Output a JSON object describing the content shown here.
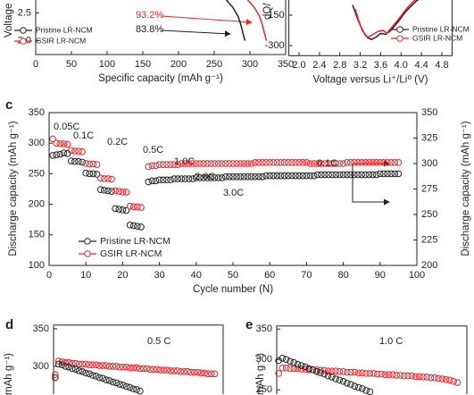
{
  "chart_data": [
    {
      "type": "line",
      "xlabel": "Specific capacity (mAh g⁻¹)",
      "ylabel": "Voltage",
      "xlim": [
        0,
        350
      ],
      "xticks": [
        0,
        50,
        100,
        150,
        200,
        250,
        300,
        350
      ],
      "ylim": [
        1.75,
        2.75
      ],
      "yticks": [
        {
          "value": 2.0,
          "label": "2.0"
        },
        2.5
      ],
      "series": [
        {
          "name": "Pristine LR-NCM",
          "color": "#222222",
          "x": [
            266,
            276,
            283,
            287,
            290,
            292,
            293
          ],
          "values": [
            2.75,
            2.6,
            2.45,
            2.3,
            2.15,
            2.05,
            2.0
          ]
        },
        {
          "name": "GSIR LR-NCM",
          "color": "#e8252a",
          "x": [
            296,
            306,
            313,
            317,
            320,
            322,
            323
          ],
          "values": [
            2.75,
            2.6,
            2.45,
            2.3,
            2.15,
            2.05,
            2.0
          ]
        }
      ],
      "annotations": [
        {
          "text": "93.2%",
          "color": "#e8252a"
        },
        {
          "text": "83.8%",
          "color": "#222222"
        }
      ]
    },
    {
      "type": "line",
      "xlabel": "Voltage versus Li⁺/Li⁰ (V)",
      "ylabel": "dQ/",
      "xlim": [
        1.8,
        5.0
      ],
      "xticks": [
        {
          "value": 2.0,
          "label": "2.0"
        },
        2.4,
        2.8,
        3.2,
        3.6,
        {
          "value": 4.0,
          "label": "4.0"
        },
        4.4,
        4.8
      ],
      "ylim": [
        -350,
        -50
      ],
      "yticks": [
        -150,
        -300
      ],
      "series": [
        {
          "name": "Pristine LR-NCM",
          "color": "#222222",
          "x": [
            3.05,
            3.15,
            3.25,
            3.35,
            3.42,
            3.5,
            3.6,
            3.7,
            3.8,
            3.95,
            4.1,
            4.3,
            4.5
          ],
          "values": [
            -100,
            -170,
            -230,
            -262,
            -270,
            -260,
            -240,
            -245,
            -225,
            -180,
            -130,
            -80,
            -50
          ]
        },
        {
          "name": "GSIR LR-NCM",
          "color": "#e8252a",
          "x": [
            3.1,
            3.2,
            3.3,
            3.36,
            3.45,
            3.55,
            3.65,
            3.72,
            3.8,
            3.95,
            4.1,
            4.25,
            4.4
          ],
          "values": [
            -120,
            -200,
            -250,
            -258,
            -245,
            -230,
            -225,
            -240,
            -215,
            -170,
            -120,
            -80,
            -50
          ]
        }
      ]
    },
    {
      "type": "scatter",
      "panel": "c",
      "xlabel": "Cycle number (N)",
      "ylabel": "Discharge capacity (mAh g⁻¹)",
      "y2label": "Discharge capacity (mAh g⁻¹)",
      "xlim": [
        0,
        100
      ],
      "xticks": [
        0,
        10,
        20,
        30,
        40,
        50,
        60,
        70,
        80,
        90,
        100
      ],
      "ylim": [
        100,
        350
      ],
      "yticks": [
        100,
        150,
        200,
        250,
        300,
        350
      ],
      "y2lim": [
        200,
        350
      ],
      "y2ticks": [
        200,
        225,
        250,
        275,
        300,
        325,
        350
      ],
      "series": [
        {
          "name": "Pristine LR-NCM",
          "color": "#222222",
          "x": [
            1,
            2,
            3,
            4,
            5,
            6,
            7,
            8,
            9,
            10,
            11,
            12,
            13,
            14,
            15,
            16,
            17,
            18,
            19,
            20,
            21,
            22,
            23,
            24,
            25
          ],
          "values": [
            280,
            281,
            282,
            284,
            283,
            271,
            270,
            270,
            269,
            251,
            250,
            250,
            249,
            224,
            223,
            222,
            221,
            193,
            192,
            191,
            190,
            166,
            165,
            164,
            163
          ]
        },
        {
          "name": "GSIR LR-NCM",
          "color": "#e8252a",
          "x": [
            1,
            2,
            3,
            4,
            5,
            6,
            7,
            8,
            9,
            10,
            11,
            12,
            13,
            14,
            15,
            16,
            17,
            18,
            19,
            20,
            21,
            22,
            23,
            24,
            25
          ],
          "values": [
            307,
            300,
            299,
            299,
            298,
            288,
            287,
            287,
            286,
            267,
            266,
            266,
            265,
            243,
            242,
            242,
            241,
            222,
            221,
            220,
            220,
            197,
            196,
            196,
            195
          ]
        },
        {
          "color": "#222222",
          "axis": "y2",
          "x": [
            27,
            28,
            29,
            30,
            31,
            32,
            33,
            34,
            35,
            36,
            37,
            38,
            39,
            40,
            41,
            42,
            43,
            44,
            45,
            46,
            47,
            48,
            49,
            50,
            51,
            52,
            53,
            54,
            55,
            56,
            57,
            58,
            59,
            60,
            61,
            62,
            63,
            64,
            65,
            66,
            67,
            68,
            69,
            70,
            71,
            72,
            73,
            74,
            75,
            76,
            77,
            78,
            79,
            80,
            81,
            82,
            83,
            84,
            85,
            86,
            87,
            88,
            89,
            90,
            91,
            92,
            93,
            94,
            95
          ],
          "values": [
            282,
            283,
            283,
            284,
            284,
            284,
            284,
            285,
            285,
            285,
            285,
            285,
            285,
            286,
            286,
            286,
            286,
            286,
            286,
            286,
            286,
            287,
            287,
            287,
            287,
            287,
            287,
            287,
            287,
            287,
            287,
            287,
            288,
            288,
            288,
            288,
            288,
            288,
            288,
            288,
            288,
            288,
            288,
            288,
            288,
            288,
            289,
            289,
            289,
            289,
            289,
            289,
            289,
            289,
            289,
            289,
            289,
            289,
            289,
            289,
            289,
            289,
            289,
            290,
            290,
            290,
            290,
            290,
            290
          ]
        },
        {
          "color": "#e8252a",
          "axis": "y2",
          "x": [
            27,
            28,
            29,
            30,
            31,
            32,
            33,
            34,
            35,
            36,
            37,
            38,
            39,
            40,
            41,
            42,
            43,
            44,
            45,
            46,
            47,
            48,
            49,
            50,
            51,
            52,
            53,
            54,
            55,
            56,
            57,
            58,
            59,
            60,
            61,
            62,
            63,
            64,
            65,
            66,
            67,
            68,
            69,
            70,
            71,
            72,
            73,
            74,
            75,
            76,
            77,
            78,
            79,
            80,
            81,
            82,
            83,
            84,
            85,
            86,
            87,
            88,
            89,
            90,
            91,
            92,
            93,
            94,
            95
          ],
          "values": [
            297,
            298,
            298,
            299,
            299,
            299,
            299,
            299,
            299,
            300,
            300,
            300,
            300,
            300,
            300,
            300,
            300,
            300,
            300,
            300,
            300,
            300,
            300,
            300,
            300,
            300,
            300,
            300,
            300,
            301,
            301,
            301,
            301,
            301,
            301,
            301,
            301,
            301,
            301,
            301,
            301,
            301,
            301,
            301,
            300,
            300,
            300,
            300,
            300,
            300,
            300,
            300,
            300,
            300,
            301,
            301,
            301,
            301,
            301,
            301,
            301,
            301,
            301,
            301,
            301,
            301,
            301,
            301,
            301
          ]
        }
      ],
      "annotations": [
        {
          "text": "0.05C",
          "color": "#222222"
        },
        {
          "text": "0.1C",
          "color": "#222222"
        },
        {
          "text": "0.2C",
          "color": "#222222"
        },
        {
          "text": "0.5C",
          "color": "#222222"
        },
        {
          "text": "1.0C",
          "color": "#222222"
        },
        {
          "text": "2.0C",
          "color": "#222222"
        },
        {
          "text": "3.0C",
          "color": "#222222"
        },
        {
          "text": "0.1C",
          "color": "#222222"
        }
      ]
    },
    {
      "type": "scatter",
      "panel": "d",
      "ylabel": "ity (mAh g⁻¹)",
      "xlim": [
        0,
        100
      ],
      "ylim": [
        263,
        355
      ],
      "yticks": [
        300,
        350
      ],
      "series": [
        {
          "color": "#e8252a",
          "x": [
            1,
            3,
            5,
            7,
            9,
            11,
            13,
            15,
            17,
            19,
            21,
            23,
            25,
            27,
            29,
            31,
            33,
            35,
            37,
            39,
            41,
            43,
            45,
            47,
            49,
            51,
            53,
            55,
            57,
            59,
            61,
            63,
            65,
            67,
            69,
            71,
            73,
            75,
            77,
            79,
            81,
            83,
            85,
            87,
            89,
            91,
            93,
            95
          ],
          "values": [
            289,
            307,
            306,
            305,
            305,
            304,
            304,
            303,
            303,
            303,
            302,
            302,
            302,
            301,
            301,
            301,
            300,
            300,
            300,
            299,
            299,
            299,
            298,
            298,
            298,
            297,
            297,
            297,
            296,
            296,
            296,
            295,
            295,
            295,
            294,
            294,
            294,
            293,
            293,
            293,
            292,
            292,
            292,
            291,
            291,
            290,
            290,
            290
          ]
        },
        {
          "color": "#222222",
          "x": [
            1,
            3,
            5,
            7,
            9,
            11,
            13,
            15,
            17,
            19,
            21,
            23,
            25,
            27,
            29,
            31,
            33,
            35,
            37,
            39,
            41,
            43,
            45,
            47,
            49,
            51
          ],
          "values": [
            285,
            303,
            302,
            300,
            299,
            297,
            296,
            294,
            293,
            291,
            290,
            288,
            287,
            285,
            284,
            282,
            281,
            279,
            278,
            276,
            275,
            273,
            272,
            270,
            269,
            267
          ]
        }
      ],
      "annotations": [
        {
          "text": "0.5 C",
          "color": "#222222"
        }
      ]
    },
    {
      "type": "scatter",
      "panel": "e",
      "ylabel": "ty (mAh g⁻¹)",
      "xlim": [
        0,
        100
      ],
      "ylim": [
        243,
        355
      ],
      "yticks": [
        250,
        300,
        350
      ],
      "series": [
        {
          "color": "#e8252a",
          "x": [
            1,
            3,
            5,
            7,
            9,
            11,
            13,
            15,
            17,
            19,
            21,
            23,
            25,
            27,
            29,
            31,
            33,
            35,
            37,
            39,
            41,
            43,
            45,
            47,
            49,
            51,
            53,
            55,
            57,
            59,
            61,
            63,
            65,
            67,
            69,
            71,
            73,
            75,
            77,
            79,
            81,
            83,
            85,
            87,
            89,
            91,
            93,
            95
          ],
          "values": [
            277,
            286,
            286,
            285,
            285,
            285,
            284,
            284,
            283,
            283,
            283,
            282,
            282,
            281,
            281,
            281,
            280,
            280,
            279,
            279,
            279,
            278,
            278,
            277,
            277,
            277,
            276,
            276,
            275,
            275,
            275,
            274,
            274,
            273,
            273,
            273,
            272,
            272,
            271,
            271,
            270,
            270,
            269,
            268,
            267,
            266,
            264,
            262
          ]
        },
        {
          "color": "#222222",
          "x": [
            1,
            3,
            5,
            7,
            9,
            11,
            13,
            15,
            17,
            19,
            21,
            23,
            25,
            27,
            29,
            31,
            33,
            35,
            37,
            39,
            41,
            43,
            45,
            47,
            49
          ],
          "values": [
            298,
            302,
            300,
            297,
            295,
            292,
            290,
            288,
            285,
            283,
            280,
            278,
            276,
            273,
            271,
            268,
            266,
            264,
            261,
            259,
            256,
            254,
            252,
            249,
            247
          ]
        }
      ],
      "annotations": [
        {
          "text": "1.0 C",
          "color": "#222222"
        }
      ]
    }
  ]
}
